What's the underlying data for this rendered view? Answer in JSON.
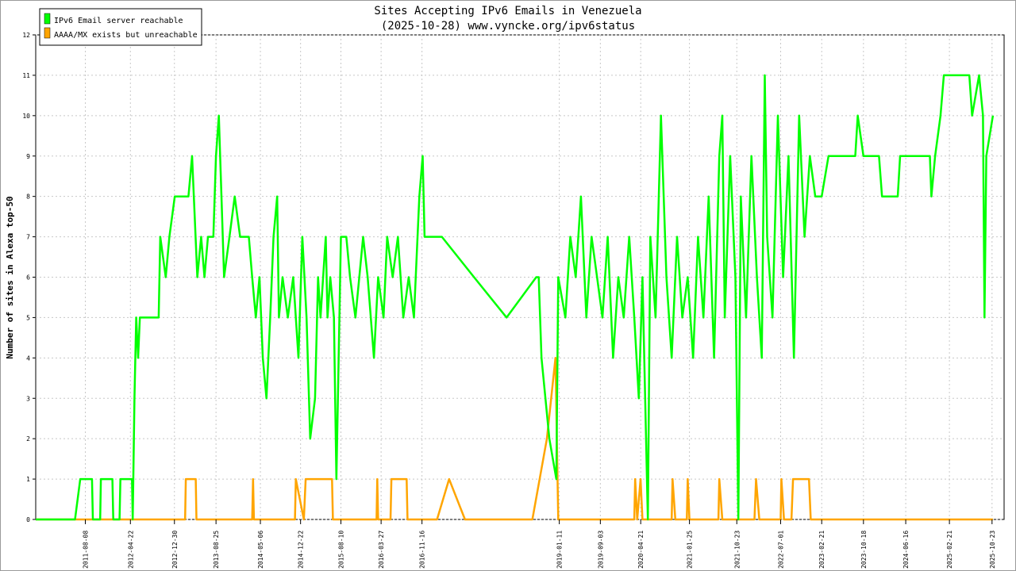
{
  "chart_data": {
    "type": "line",
    "title": "Sites Accepting IPv6 Emails in Venezuela",
    "subtitle": "(2025-10-28) www.vyncke.org/ipv6status",
    "ylabel": "Number of sites in Alexa top-50",
    "xlabel": "",
    "ylim": [
      0,
      12
    ],
    "yticks": [
      0,
      1,
      2,
      3,
      4,
      5,
      6,
      7,
      8,
      9,
      10,
      11,
      12
    ],
    "xlim": [
      "2010-10-28",
      "2025-12-31"
    ],
    "xtick_labels": [
      "2011-08-08",
      "2012-04-22",
      "2012-12-30",
      "2013-08-25",
      "2014-05-06",
      "2014-12-22",
      "2015-08-10",
      "2016-03-27",
      "2016-11-16",
      "2019-01-11",
      "2019-09-03",
      "2020-04-21",
      "2021-01-25",
      "2021-10-23",
      "2022-07-01",
      "2023-02-21",
      "2023-10-18",
      "2024-06-16",
      "2025-02-21",
      "2025-10-23"
    ],
    "grid": true,
    "legend_position": "top-left",
    "series": [
      {
        "name": "IPv6 Email server reachable",
        "color": "#00ff00",
        "points": [
          [
            "2010-10-28",
            0
          ],
          [
            "2011-06-10",
            0
          ],
          [
            "2011-07-10",
            1
          ],
          [
            "2011-09-15",
            1
          ],
          [
            "2011-09-20",
            0
          ],
          [
            "2011-11-01",
            0
          ],
          [
            "2011-11-05",
            1
          ],
          [
            "2012-01-10",
            1
          ],
          [
            "2012-01-15",
            0
          ],
          [
            "2012-02-20",
            0
          ],
          [
            "2012-02-25",
            1
          ],
          [
            "2012-05-01",
            1
          ],
          [
            "2012-05-05",
            0
          ],
          [
            "2012-05-15",
            3
          ],
          [
            "2012-05-25",
            5
          ],
          [
            "2012-06-05",
            4
          ],
          [
            "2012-06-15",
            5
          ],
          [
            "2012-10-01",
            5
          ],
          [
            "2012-10-10",
            7
          ],
          [
            "2012-11-10",
            6
          ],
          [
            "2012-12-01",
            7
          ],
          [
            "2013-01-01",
            8
          ],
          [
            "2013-03-20",
            8
          ],
          [
            "2013-04-10",
            9
          ],
          [
            "2013-04-20",
            8
          ],
          [
            "2013-05-10",
            6
          ],
          [
            "2013-06-01",
            7
          ],
          [
            "2013-06-20",
            6
          ],
          [
            "2013-07-10",
            7
          ],
          [
            "2013-08-10",
            7
          ],
          [
            "2013-08-25",
            9
          ],
          [
            "2013-09-10",
            10
          ],
          [
            "2013-09-25",
            8
          ],
          [
            "2013-10-10",
            6
          ],
          [
            "2013-11-10",
            7
          ],
          [
            "2013-12-10",
            8
          ],
          [
            "2014-01-10",
            7
          ],
          [
            "2014-03-01",
            7
          ],
          [
            "2014-03-20",
            6
          ],
          [
            "2014-04-10",
            5
          ],
          [
            "2014-05-01",
            6
          ],
          [
            "2014-05-20",
            4
          ],
          [
            "2014-06-10",
            3
          ],
          [
            "2014-07-01",
            5
          ],
          [
            "2014-07-20",
            7
          ],
          [
            "2014-08-10",
            8
          ],
          [
            "2014-08-20",
            5
          ],
          [
            "2014-09-10",
            6
          ],
          [
            "2014-10-10",
            5
          ],
          [
            "2014-11-10",
            6
          ],
          [
            "2014-12-10",
            4
          ],
          [
            "2015-01-01",
            7
          ],
          [
            "2015-01-25",
            5
          ],
          [
            "2015-02-15",
            2
          ],
          [
            "2015-03-15",
            3
          ],
          [
            "2015-04-01",
            6
          ],
          [
            "2015-04-15",
            5
          ],
          [
            "2015-05-15",
            7
          ],
          [
            "2015-05-25",
            5
          ],
          [
            "2015-06-10",
            6
          ],
          [
            "2015-07-01",
            5
          ],
          [
            "2015-07-15",
            1
          ],
          [
            "2015-08-10",
            7
          ],
          [
            "2015-09-10",
            7
          ],
          [
            "2015-10-01",
            6
          ],
          [
            "2015-11-01",
            5
          ],
          [
            "2015-12-15",
            7
          ],
          [
            "2016-01-10",
            6
          ],
          [
            "2016-02-15",
            4
          ],
          [
            "2016-03-10",
            6
          ],
          [
            "2016-04-10",
            5
          ],
          [
            "2016-05-01",
            7
          ],
          [
            "2016-06-01",
            6
          ],
          [
            "2016-07-01",
            7
          ],
          [
            "2016-08-01",
            5
          ],
          [
            "2016-09-01",
            6
          ],
          [
            "2016-10-01",
            5
          ],
          [
            "2016-11-01",
            8
          ],
          [
            "2016-11-20",
            9
          ],
          [
            "2016-12-01",
            7
          ],
          [
            "2017-03-10",
            7
          ],
          [
            "2017-09-10",
            6
          ],
          [
            "2018-03-15",
            5
          ],
          [
            "2018-09-01",
            6
          ],
          [
            "2018-09-15",
            6
          ],
          [
            "2018-10-01",
            4
          ],
          [
            "2018-11-15",
            2
          ],
          [
            "2018-12-25",
            1
          ],
          [
            "2019-01-05",
            6
          ],
          [
            "2019-02-15",
            5
          ],
          [
            "2019-03-15",
            7
          ],
          [
            "2019-04-15",
            6
          ],
          [
            "2019-05-15",
            8
          ],
          [
            "2019-06-15",
            5
          ],
          [
            "2019-07-15",
            7
          ],
          [
            "2019-08-15",
            6
          ],
          [
            "2019-09-15",
            5
          ],
          [
            "2019-10-15",
            7
          ],
          [
            "2019-11-15",
            4
          ],
          [
            "2019-12-15",
            6
          ],
          [
            "2020-01-15",
            5
          ],
          [
            "2020-02-15",
            7
          ],
          [
            "2020-03-15",
            5
          ],
          [
            "2020-04-10",
            3
          ],
          [
            "2020-05-01",
            6
          ],
          [
            "2020-06-01",
            0
          ],
          [
            "2020-06-15",
            7
          ],
          [
            "2020-07-15",
            5
          ],
          [
            "2020-08-15",
            10
          ],
          [
            "2020-09-15",
            6
          ],
          [
            "2020-10-15",
            4
          ],
          [
            "2020-11-15",
            7
          ],
          [
            "2020-12-15",
            5
          ],
          [
            "2021-01-15",
            6
          ],
          [
            "2021-02-15",
            4
          ],
          [
            "2021-03-15",
            7
          ],
          [
            "2021-04-15",
            5
          ],
          [
            "2021-05-15",
            8
          ],
          [
            "2021-06-15",
            4
          ],
          [
            "2021-07-15",
            9
          ],
          [
            "2021-08-01",
            10
          ],
          [
            "2021-08-15",
            5
          ],
          [
            "2021-09-15",
            9
          ],
          [
            "2021-10-15",
            6
          ],
          [
            "2021-11-01",
            0
          ],
          [
            "2021-11-15",
            8
          ],
          [
            "2021-12-15",
            5
          ],
          [
            "2022-01-15",
            9
          ],
          [
            "2022-02-15",
            6
          ],
          [
            "2022-03-15",
            4
          ],
          [
            "2022-04-01",
            11
          ],
          [
            "2022-04-15",
            7
          ],
          [
            "2022-05-15",
            5
          ],
          [
            "2022-06-15",
            10
          ],
          [
            "2022-07-15",
            6
          ],
          [
            "2022-08-15",
            9
          ],
          [
            "2022-09-15",
            4
          ],
          [
            "2022-10-15",
            10
          ],
          [
            "2022-11-15",
            7
          ],
          [
            "2022-12-15",
            9
          ],
          [
            "2023-01-15",
            8
          ],
          [
            "2023-02-21",
            8
          ],
          [
            "2023-04-01",
            9
          ],
          [
            "2023-09-01",
            9
          ],
          [
            "2023-09-15",
            10
          ],
          [
            "2023-10-18",
            9
          ],
          [
            "2024-01-15",
            9
          ],
          [
            "2024-02-01",
            8
          ],
          [
            "2024-05-01",
            8
          ],
          [
            "2024-05-15",
            9
          ],
          [
            "2024-07-10",
            9
          ],
          [
            "2024-11-01",
            9
          ],
          [
            "2024-11-10",
            8
          ],
          [
            "2024-12-01",
            9
          ],
          [
            "2025-01-01",
            10
          ],
          [
            "2025-01-20",
            11
          ],
          [
            "2025-06-15",
            11
          ],
          [
            "2025-07-01",
            10
          ],
          [
            "2025-08-10",
            11
          ],
          [
            "2025-09-01",
            10
          ],
          [
            "2025-09-10",
            5
          ],
          [
            "2025-09-20",
            9
          ],
          [
            "2025-10-28",
            10
          ]
        ]
      },
      {
        "name": "AAAA/MX exists but unreachable",
        "color": "#ffa500",
        "points": [
          [
            "2010-10-28",
            0
          ],
          [
            "2013-03-01",
            0
          ],
          [
            "2013-03-05",
            1
          ],
          [
            "2013-05-01",
            1
          ],
          [
            "2013-05-05",
            0
          ],
          [
            "2014-03-20",
            0
          ],
          [
            "2014-03-25",
            1
          ],
          [
            "2014-03-30",
            0
          ],
          [
            "2014-11-20",
            0
          ],
          [
            "2014-11-25",
            1
          ],
          [
            "2015-01-10",
            0
          ],
          [
            "2015-01-20",
            1
          ],
          [
            "2015-06-20",
            1
          ],
          [
            "2015-06-25",
            0
          ],
          [
            "2016-03-01",
            0
          ],
          [
            "2016-03-05",
            1
          ],
          [
            "2016-03-10",
            0
          ],
          [
            "2016-05-20",
            0
          ],
          [
            "2016-05-25",
            1
          ],
          [
            "2016-08-20",
            1
          ],
          [
            "2016-08-25",
            0
          ],
          [
            "2017-02-10",
            0
          ],
          [
            "2017-04-20",
            1
          ],
          [
            "2017-07-20",
            0
          ],
          [
            "2018-08-10",
            0
          ],
          [
            "2018-11-01",
            2
          ],
          [
            "2018-12-20",
            4
          ],
          [
            "2019-01-05",
            0
          ],
          [
            "2020-03-15",
            0
          ],
          [
            "2020-03-20",
            1
          ],
          [
            "2020-04-01",
            0
          ],
          [
            "2020-04-20",
            1
          ],
          [
            "2020-05-01",
            0
          ],
          [
            "2020-10-15",
            0
          ],
          [
            "2020-10-20",
            1
          ],
          [
            "2020-11-05",
            0
          ],
          [
            "2021-01-10",
            0
          ],
          [
            "2021-01-15",
            1
          ],
          [
            "2021-01-25",
            0
          ],
          [
            "2021-07-10",
            0
          ],
          [
            "2021-07-15",
            1
          ],
          [
            "2021-08-01",
            0
          ],
          [
            "2022-02-01",
            0
          ],
          [
            "2022-02-10",
            1
          ],
          [
            "2022-03-01",
            0
          ],
          [
            "2022-07-01",
            0
          ],
          [
            "2022-07-05",
            1
          ],
          [
            "2022-07-20",
            0
          ],
          [
            "2022-09-01",
            0
          ],
          [
            "2022-09-10",
            1
          ],
          [
            "2022-12-10",
            1
          ],
          [
            "2022-12-20",
            0
          ],
          [
            "2025-10-28",
            0
          ]
        ]
      }
    ]
  }
}
